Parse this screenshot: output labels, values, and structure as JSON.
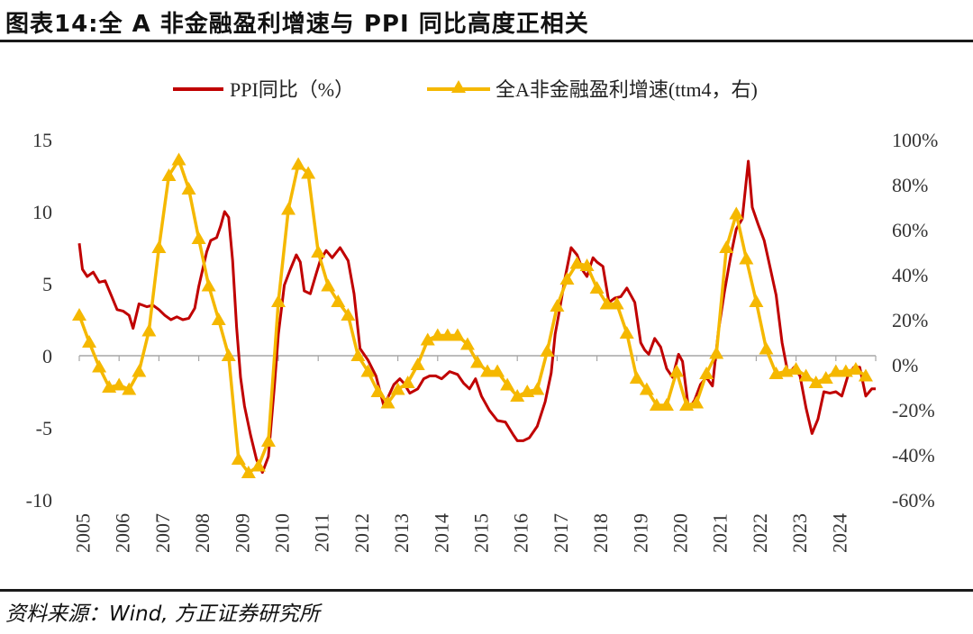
{
  "header": {
    "title": "图表14:全 A 非金融盈利增速与 PPI 同比高度正相关"
  },
  "footer": {
    "source": "资料来源：Wind, 方正证券研究所"
  },
  "chart_data": {
    "type": "line",
    "title": "图表14:全 A 非金融盈利增速与 PPI 同比高度正相关",
    "legend_position": "top-center",
    "left_axis": {
      "ticks": [
        "15",
        "10",
        "5",
        "0",
        "-5",
        "-10"
      ],
      "range": [
        -10,
        15
      ]
    },
    "right_axis": {
      "ticks": [
        "100%",
        "80%",
        "60%",
        "40%",
        "20%",
        "0%",
        "-20%",
        "-40%",
        "-60%"
      ],
      "range": [
        -60,
        100
      ]
    },
    "x_ticks": [
      "2005",
      "2006",
      "2007",
      "2008",
      "2009",
      "2010",
      "2011",
      "2012",
      "2013",
      "2014",
      "2015",
      "2016",
      "2017",
      "2018",
      "2019",
      "2020",
      "2021",
      "2022",
      "2023",
      "2024"
    ],
    "x_range": [
      2005,
      2025
    ],
    "series": [
      {
        "name": "PPI同比（%）",
        "axis": "left",
        "color": "#c00000",
        "points": [
          [
            2005.0,
            7.8
          ],
          [
            2005.08,
            6.0
          ],
          [
            2005.2,
            5.5
          ],
          [
            2005.35,
            5.8
          ],
          [
            2005.5,
            5.1
          ],
          [
            2005.65,
            5.2
          ],
          [
            2005.8,
            4.2
          ],
          [
            2005.95,
            3.2
          ],
          [
            2006.1,
            3.1
          ],
          [
            2006.25,
            2.8
          ],
          [
            2006.35,
            1.9
          ],
          [
            2006.5,
            3.6
          ],
          [
            2006.7,
            3.4
          ],
          [
            2006.85,
            3.5
          ],
          [
            2007.0,
            3.2
          ],
          [
            2007.15,
            2.8
          ],
          [
            2007.3,
            2.5
          ],
          [
            2007.45,
            2.7
          ],
          [
            2007.6,
            2.5
          ],
          [
            2007.75,
            2.6
          ],
          [
            2007.9,
            3.3
          ],
          [
            2008.0,
            4.8
          ],
          [
            2008.1,
            6.0
          ],
          [
            2008.2,
            7.2
          ],
          [
            2008.3,
            8.0
          ],
          [
            2008.45,
            8.2
          ],
          [
            2008.55,
            9.0
          ],
          [
            2008.65,
            10.0
          ],
          [
            2008.75,
            9.6
          ],
          [
            2008.85,
            6.6
          ],
          [
            2008.95,
            2.0
          ],
          [
            2009.05,
            -1.5
          ],
          [
            2009.15,
            -3.5
          ],
          [
            2009.3,
            -5.5
          ],
          [
            2009.45,
            -7.2
          ],
          [
            2009.6,
            -8.1
          ],
          [
            2009.75,
            -7.0
          ],
          [
            2009.9,
            -2.1
          ],
          [
            2010.0,
            1.5
          ],
          [
            2010.15,
            4.9
          ],
          [
            2010.3,
            6.0
          ],
          [
            2010.45,
            7.0
          ],
          [
            2010.55,
            6.5
          ],
          [
            2010.65,
            4.5
          ],
          [
            2010.8,
            4.3
          ],
          [
            2010.95,
            5.7
          ],
          [
            2011.05,
            6.6
          ],
          [
            2011.2,
            7.3
          ],
          [
            2011.35,
            6.8
          ],
          [
            2011.55,
            7.5
          ],
          [
            2011.75,
            6.6
          ],
          [
            2011.9,
            4.3
          ],
          [
            2012.05,
            0.5
          ],
          [
            2012.25,
            -0.3
          ],
          [
            2012.45,
            -1.4
          ],
          [
            2012.65,
            -3.5
          ],
          [
            2012.9,
            -2.0
          ],
          [
            2013.05,
            -1.6
          ],
          [
            2013.15,
            -1.9
          ],
          [
            2013.3,
            -2.6
          ],
          [
            2013.5,
            -2.3
          ],
          [
            2013.65,
            -1.6
          ],
          [
            2013.8,
            -1.4
          ],
          [
            2013.95,
            -1.4
          ],
          [
            2014.1,
            -1.6
          ],
          [
            2014.3,
            -1.1
          ],
          [
            2014.5,
            -1.3
          ],
          [
            2014.65,
            -1.9
          ],
          [
            2014.8,
            -2.3
          ],
          [
            2014.95,
            -1.6
          ],
          [
            2015.1,
            -2.8
          ],
          [
            2015.3,
            -3.8
          ],
          [
            2015.5,
            -4.5
          ],
          [
            2015.7,
            -4.6
          ],
          [
            2015.9,
            -5.5
          ],
          [
            2016.0,
            -5.9
          ],
          [
            2016.15,
            -5.9
          ],
          [
            2016.3,
            -5.7
          ],
          [
            2016.5,
            -4.9
          ],
          [
            2016.7,
            -3.2
          ],
          [
            2016.85,
            -1.2
          ],
          [
            2016.95,
            1.5
          ],
          [
            2017.05,
            3.0
          ],
          [
            2017.2,
            5.4
          ],
          [
            2017.35,
            7.5
          ],
          [
            2017.5,
            7.0
          ],
          [
            2017.65,
            5.9
          ],
          [
            2017.75,
            5.5
          ],
          [
            2017.9,
            6.8
          ],
          [
            2018.0,
            6.5
          ],
          [
            2018.15,
            6.2
          ],
          [
            2018.3,
            3.7
          ],
          [
            2018.45,
            4.0
          ],
          [
            2018.6,
            4.1
          ],
          [
            2018.75,
            4.7
          ],
          [
            2018.95,
            3.7
          ],
          [
            2019.1,
            0.9
          ],
          [
            2019.2,
            0.4
          ],
          [
            2019.3,
            0.1
          ],
          [
            2019.45,
            1.2
          ],
          [
            2019.6,
            0.6
          ],
          [
            2019.75,
            -0.9
          ],
          [
            2019.9,
            -1.5
          ],
          [
            2020.05,
            0.1
          ],
          [
            2020.15,
            -0.4
          ],
          [
            2020.3,
            -3.7
          ],
          [
            2020.45,
            -3.1
          ],
          [
            2020.6,
            -2.0
          ],
          [
            2020.75,
            -1.5
          ],
          [
            2020.9,
            -2.1
          ],
          [
            2021.05,
            1.7
          ],
          [
            2021.2,
            4.4
          ],
          [
            2021.35,
            6.8
          ],
          [
            2021.5,
            8.8
          ],
          [
            2021.65,
            9.5
          ],
          [
            2021.8,
            13.5
          ],
          [
            2021.9,
            10.3
          ],
          [
            2022.05,
            9.1
          ],
          [
            2022.2,
            8.0
          ],
          [
            2022.35,
            6.1
          ],
          [
            2022.5,
            4.2
          ],
          [
            2022.65,
            0.9
          ],
          [
            2022.8,
            -1.3
          ],
          [
            2022.95,
            -0.8
          ],
          [
            2023.1,
            -1.4
          ],
          [
            2023.25,
            -3.6
          ],
          [
            2023.4,
            -5.4
          ],
          [
            2023.55,
            -4.4
          ],
          [
            2023.7,
            -2.5
          ],
          [
            2023.85,
            -2.6
          ],
          [
            2024.0,
            -2.5
          ],
          [
            2024.15,
            -2.8
          ],
          [
            2024.3,
            -1.4
          ],
          [
            2024.45,
            -0.8
          ],
          [
            2024.6,
            -0.8
          ],
          [
            2024.75,
            -2.8
          ],
          [
            2024.9,
            -2.3
          ],
          [
            2025.0,
            -2.3
          ]
        ]
      },
      {
        "name": "全A非金融盈利增速(ttm4，右)",
        "axis": "right",
        "color": "#f5b800",
        "points": [
          [
            2005.0,
            22
          ],
          [
            2005.25,
            10
          ],
          [
            2005.5,
            -1
          ],
          [
            2005.75,
            -10
          ],
          [
            2006.0,
            -9
          ],
          [
            2006.25,
            -11
          ],
          [
            2006.5,
            -3
          ],
          [
            2006.75,
            15
          ],
          [
            2007.0,
            52
          ],
          [
            2007.25,
            84
          ],
          [
            2007.5,
            91
          ],
          [
            2007.75,
            78
          ],
          [
            2008.0,
            56
          ],
          [
            2008.25,
            35
          ],
          [
            2008.5,
            20
          ],
          [
            2008.75,
            4
          ],
          [
            2009.0,
            -42
          ],
          [
            2009.25,
            -48
          ],
          [
            2009.5,
            -45
          ],
          [
            2009.75,
            -34
          ],
          [
            2010.0,
            28
          ],
          [
            2010.25,
            69
          ],
          [
            2010.5,
            89
          ],
          [
            2010.75,
            85
          ],
          [
            2011.0,
            50
          ],
          [
            2011.25,
            35
          ],
          [
            2011.5,
            28
          ],
          [
            2011.75,
            22
          ],
          [
            2012.0,
            4
          ],
          [
            2012.25,
            -3
          ],
          [
            2012.5,
            -12
          ],
          [
            2012.75,
            -17
          ],
          [
            2013.0,
            -11
          ],
          [
            2013.25,
            -8
          ],
          [
            2013.5,
            0
          ],
          [
            2013.75,
            11
          ],
          [
            2014.0,
            13
          ],
          [
            2014.25,
            13
          ],
          [
            2014.5,
            13
          ],
          [
            2014.75,
            9
          ],
          [
            2015.0,
            1
          ],
          [
            2015.25,
            -3
          ],
          [
            2015.5,
            -3
          ],
          [
            2015.75,
            -9
          ],
          [
            2016.0,
            -14
          ],
          [
            2016.25,
            -12
          ],
          [
            2016.5,
            -11
          ],
          [
            2016.75,
            6
          ],
          [
            2017.0,
            26
          ],
          [
            2017.25,
            38
          ],
          [
            2017.5,
            45
          ],
          [
            2017.75,
            44
          ],
          [
            2018.0,
            34
          ],
          [
            2018.25,
            27
          ],
          [
            2018.5,
            27
          ],
          [
            2018.75,
            14
          ],
          [
            2019.0,
            -6
          ],
          [
            2019.25,
            -11
          ],
          [
            2019.5,
            -18
          ],
          [
            2019.75,
            -18
          ],
          [
            2020.0,
            -3
          ],
          [
            2020.25,
            -18
          ],
          [
            2020.5,
            -17
          ],
          [
            2020.75,
            -4
          ],
          [
            2021.0,
            5
          ],
          [
            2021.25,
            52
          ],
          [
            2021.5,
            67
          ],
          [
            2021.75,
            47
          ],
          [
            2022.0,
            28
          ],
          [
            2022.25,
            7
          ],
          [
            2022.5,
            -4
          ],
          [
            2022.75,
            -3
          ],
          [
            2023.0,
            -2
          ],
          [
            2023.25,
            -5
          ],
          [
            2023.5,
            -8
          ],
          [
            2023.75,
            -6
          ],
          [
            2024.0,
            -3
          ],
          [
            2024.25,
            -3
          ],
          [
            2024.5,
            -2
          ],
          [
            2024.75,
            -5
          ]
        ]
      }
    ]
  }
}
